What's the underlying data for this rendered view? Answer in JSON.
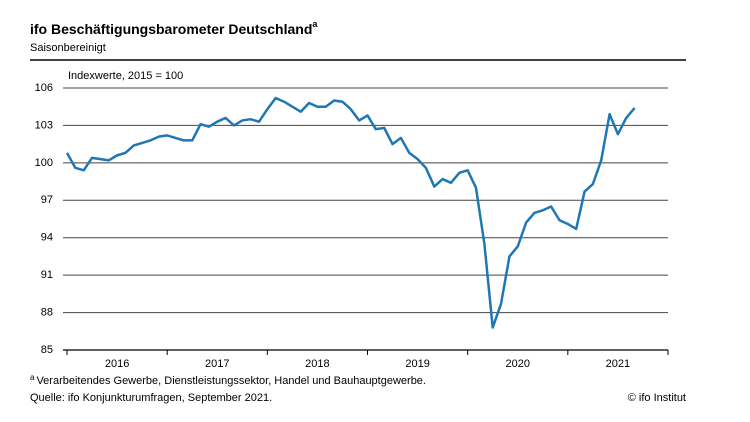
{
  "chart_data": {
    "type": "line",
    "title": "ifo Beschäftigungsbarometer Deutschland",
    "title_marker": "a",
    "subtitle": "Saisonbereinigt",
    "ylabel": "Indexwerte, 2015 = 100",
    "footnote_marker": "a",
    "footnote": "Verarbeitendes Gewerbe, Dienstleistungssektor, Handel und Bauhauptgewerbe.",
    "source": "Quelle: ifo Konjunkturumfragen, September 2021.",
    "credit": "© ifo Institut",
    "ylim": [
      85,
      106
    ],
    "yticks": [
      85,
      88,
      91,
      94,
      97,
      100,
      103,
      106
    ],
    "grid": true,
    "xlim": [
      2015.96,
      2022.0
    ],
    "xticks": [
      2016,
      2017,
      2018,
      2019,
      2020,
      2021,
      2022
    ],
    "xtick_labels": [
      {
        "value": 2016.5,
        "label": "2016"
      },
      {
        "value": 2017.5,
        "label": "2017"
      },
      {
        "value": 2018.5,
        "label": "2018"
      },
      {
        "value": 2019.5,
        "label": "2019"
      },
      {
        "value": 2020.5,
        "label": "2020"
      },
      {
        "value": 2021.5,
        "label": "2021"
      }
    ],
    "series": [
      {
        "color": "#1f77b4",
        "x": [
          2016.0,
          2016.083,
          2016.167,
          2016.25,
          2016.333,
          2016.417,
          2016.5,
          2016.583,
          2016.667,
          2016.75,
          2016.833,
          2016.917,
          2017.0,
          2017.083,
          2017.167,
          2017.25,
          2017.333,
          2017.417,
          2017.5,
          2017.583,
          2017.667,
          2017.75,
          2017.833,
          2017.917,
          2018.0,
          2018.083,
          2018.167,
          2018.25,
          2018.333,
          2018.417,
          2018.5,
          2018.583,
          2018.667,
          2018.75,
          2018.833,
          2018.917,
          2019.0,
          2019.083,
          2019.167,
          2019.25,
          2019.333,
          2019.417,
          2019.5,
          2019.583,
          2019.667,
          2019.75,
          2019.833,
          2019.917,
          2020.0,
          2020.083,
          2020.167,
          2020.25,
          2020.333,
          2020.417,
          2020.5,
          2020.583,
          2020.667,
          2020.75,
          2020.833,
          2020.917,
          2021.0,
          2021.083,
          2021.167,
          2021.25,
          2021.333,
          2021.417,
          2021.5,
          2021.583,
          2021.667
        ],
        "values": [
          100.8,
          99.6,
          99.4,
          100.4,
          100.3,
          100.2,
          100.6,
          100.8,
          101.4,
          101.6,
          101.8,
          102.1,
          102.2,
          102.0,
          101.8,
          101.8,
          103.1,
          102.9,
          103.3,
          103.6,
          103.0,
          103.4,
          103.5,
          103.3,
          104.3,
          105.2,
          104.9,
          104.5,
          104.1,
          104.8,
          104.5,
          104.5,
          105.0,
          104.9,
          104.3,
          103.4,
          103.8,
          102.7,
          102.8,
          101.5,
          102.0,
          100.8,
          100.3,
          99.6,
          98.1,
          98.7,
          98.4,
          99.2,
          99.4,
          98.0,
          93.5,
          86.8,
          88.7,
          92.5,
          93.3,
          95.2,
          96.0,
          96.2,
          96.5,
          95.4,
          95.1,
          94.7,
          97.7,
          98.3,
          100.2,
          103.9,
          102.3,
          103.6,
          104.4
        ]
      }
    ]
  }
}
